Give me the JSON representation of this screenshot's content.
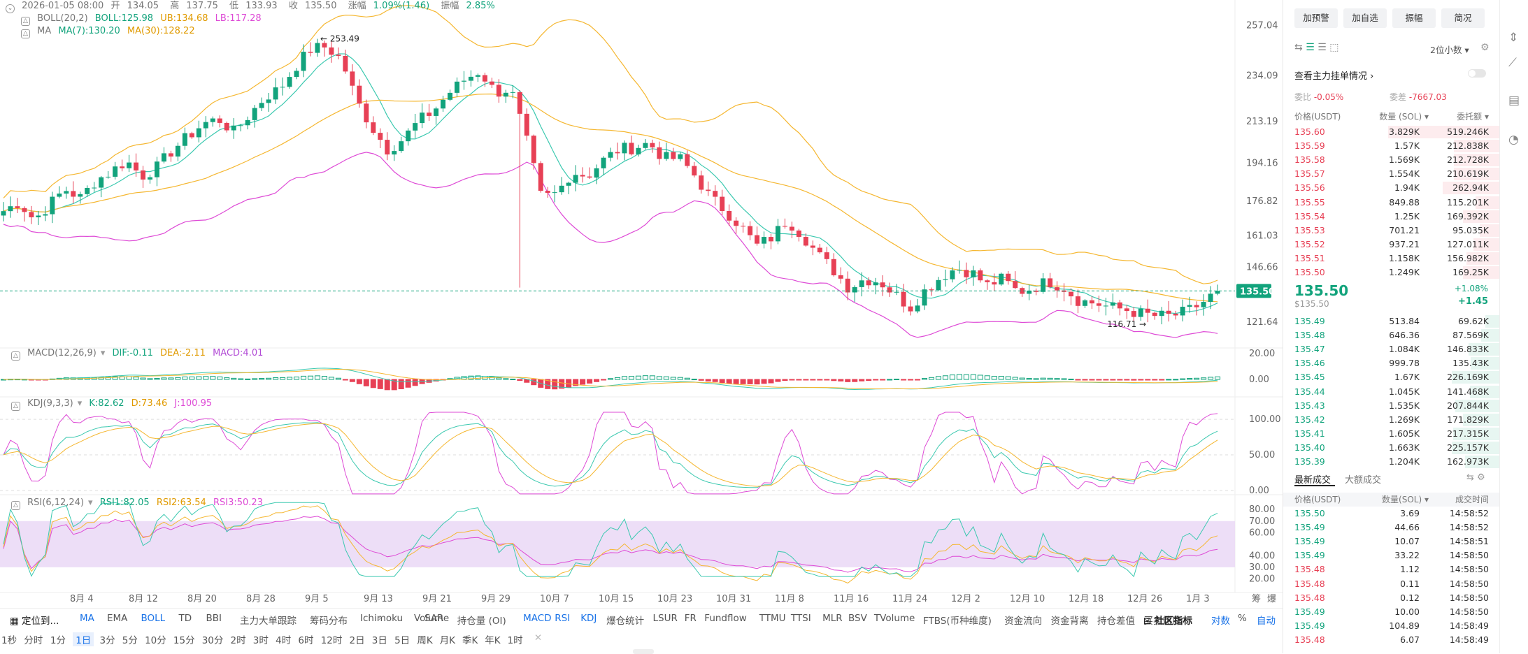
{
  "header": {
    "date": "2026-01-05 08:00",
    "open_label": "开",
    "open": "134.05",
    "high_label": "高",
    "high": "137.75",
    "low_label": "低",
    "low": "133.93",
    "close_label": "收",
    "close": "135.50",
    "chg_label": "涨幅",
    "chg": "1.09%(1.46)",
    "amp_label": "振幅",
    "amp": "2.85%"
  },
  "boll": {
    "label": "BOLL(20,2)",
    "mid": "BOLL:125.98",
    "ub": "UB:134.68",
    "lb": "LB:117.28"
  },
  "ma": {
    "label": "MA",
    "ma7": "MA(7):130.20",
    "ma30": "MA(30):128.22"
  },
  "macd": {
    "label": "MACD(12,26,9)",
    "dif": "DIF:-0.11",
    "dea": "DEA:-2.11",
    "macd": "MACD:4.01"
  },
  "kdj": {
    "label": "KDJ(9,3,3)",
    "k": "K:82.62",
    "d": "D:73.46",
    "j": "J:100.95"
  },
  "rsi": {
    "label": "RSI(6,12,24)",
    "r1": "RSI1:82.05",
    "r2": "RSI2:63.54",
    "r3": "RSI3:50.23"
  },
  "colors": {
    "up": "#12a37c",
    "down": "#e74055",
    "boll_band": "#f5b731",
    "boll_lb": "#de4bd6",
    "ma7": "#3cc9b0",
    "ma30": "#f5b731"
  },
  "chart_data": {
    "type": "candlestick",
    "price_axis": {
      "ticks": [
        "257.04",
        "234.09",
        "213.19",
        "194.16",
        "176.82",
        "161.03",
        "146.66",
        "121.64"
      ],
      "last": "135.50",
      "ylim": [
        112,
        262
      ]
    },
    "date_axis": [
      "8月 4",
      "8月 12",
      "8月 20",
      "8月 28",
      "9月 5",
      "9月 13",
      "9月 21",
      "9月 29",
      "10月 7",
      "10月 15",
      "10月 23",
      "10月 31",
      "11月 8",
      "11月 16",
      "11月 24",
      "12月 2",
      "12月 10",
      "12月 18",
      "12月 26",
      "1月 3"
    ],
    "annotations": {
      "high": "253.49",
      "low": "116.71"
    },
    "ohlc_weekly_close": [
      172,
      176,
      168,
      175,
      182,
      178,
      186,
      190,
      195,
      188,
      192,
      200,
      206,
      212,
      214,
      208,
      216,
      224,
      228,
      238,
      246,
      247,
      241,
      222,
      210,
      200,
      205,
      213,
      218,
      226,
      232,
      236,
      226,
      228,
      205,
      178,
      180,
      190,
      188,
      195,
      200,
      201,
      203,
      196,
      196,
      188,
      178,
      172,
      165,
      156,
      160,
      168,
      161,
      152,
      145,
      137,
      141,
      140,
      134,
      128,
      136,
      142,
      146,
      144,
      138,
      141,
      135,
      137,
      140,
      137,
      131,
      130,
      128,
      127,
      125,
      124,
      124,
      126,
      130,
      135.5
    ],
    "macd_axis": [
      "20.00",
      "0.00"
    ],
    "kdj_axis": [
      "100.00",
      "50.00",
      "0.00"
    ],
    "rsi_axis": [
      "80.00",
      "70.00",
      "60.00",
      "40.00",
      "30.00",
      "20.00"
    ]
  },
  "axis_corner": {
    "a": "筹",
    "b": "爆"
  },
  "orderbook": {
    "buttons": [
      "加预警",
      "加自选",
      "振幅",
      "简况"
    ],
    "precision": "2位小数",
    "main_link": "查看主力挂单情况",
    "ratio_label": "委比",
    "ratio": "-0.05%",
    "diff_label": "委差",
    "diff": "-7667.03",
    "col_price": "价格(USDT)",
    "col_qty": "数量 (SOL)",
    "col_total": "委托额",
    "asks": [
      [
        "135.60",
        "3.829K",
        "519.246K"
      ],
      [
        "135.59",
        "1.57K",
        "212.838K"
      ],
      [
        "135.58",
        "1.569K",
        "212.728K"
      ],
      [
        "135.57",
        "1.554K",
        "210.619K"
      ],
      [
        "135.56",
        "1.94K",
        "262.94K"
      ],
      [
        "135.55",
        "849.88",
        "115.201K"
      ],
      [
        "135.54",
        "1.25K",
        "169.392K"
      ],
      [
        "135.53",
        "701.21",
        "95.035K"
      ],
      [
        "135.52",
        "937.21",
        "127.011K"
      ],
      [
        "135.51",
        "1.158K",
        "156.982K"
      ],
      [
        "135.50",
        "1.249K",
        "169.25K"
      ]
    ],
    "ask_depth": [
      1.0,
      0.41,
      0.41,
      0.41,
      0.51,
      0.22,
      0.33,
      0.18,
      0.24,
      0.3,
      0.33
    ],
    "mid_price": "135.50",
    "mid_usd": "$135.50",
    "mid_pct": "+1.08%",
    "mid_chg": "+1.45",
    "bids": [
      [
        "135.49",
        "513.84",
        "69.62K"
      ],
      [
        "135.48",
        "646.36",
        "87.569K"
      ],
      [
        "135.47",
        "1.084K",
        "146.833K"
      ],
      [
        "135.46",
        "999.78",
        "135.43K"
      ],
      [
        "135.45",
        "1.67K",
        "226.169K"
      ],
      [
        "135.44",
        "1.045K",
        "141.468K"
      ],
      [
        "135.43",
        "1.535K",
        "207.844K"
      ],
      [
        "135.42",
        "1.269K",
        "171.829K"
      ],
      [
        "135.41",
        "1.605K",
        "217.315K"
      ],
      [
        "135.40",
        "1.663K",
        "225.157K"
      ],
      [
        "135.39",
        "1.204K",
        "162.973K"
      ]
    ],
    "bid_depth": [
      0.13,
      0.17,
      0.28,
      0.26,
      0.43,
      0.27,
      0.4,
      0.33,
      0.42,
      0.43,
      0.31
    ]
  },
  "trades": {
    "tab1": "最新成交",
    "tab2": "大额成交",
    "col_price": "价格(USDT)",
    "col_qty": "数量(SOL)",
    "col_time": "成交时间",
    "rows": [
      [
        "135.50",
        "3.69",
        "14:58:52",
        "g"
      ],
      [
        "135.49",
        "44.66",
        "14:58:52",
        "g"
      ],
      [
        "135.49",
        "10.07",
        "14:58:51",
        "g"
      ],
      [
        "135.49",
        "33.22",
        "14:58:50",
        "g"
      ],
      [
        "135.48",
        "1.12",
        "14:58:50",
        "r"
      ],
      [
        "135.48",
        "0.11",
        "14:58:50",
        "r"
      ],
      [
        "135.48",
        "0.12",
        "14:58:50",
        "r"
      ],
      [
        "135.49",
        "10.00",
        "14:58:50",
        "g"
      ],
      [
        "135.49",
        "104.89",
        "14:58:49",
        "g"
      ],
      [
        "135.48",
        "6.07",
        "14:58:49",
        "r"
      ]
    ]
  },
  "indicators": [
    "MA",
    "EMA",
    "BOLL",
    "TD",
    "BBI",
    "主力大单跟踪",
    "筹码分布",
    "Ichimoku",
    "SAR"
  ],
  "sub_indicators": [
    "Volume",
    "持仓量 (OI)",
    "MACD",
    "RSI",
    "KDJ",
    "爆仓统计",
    "LSUR",
    "FR",
    "Fundflow",
    "TTMU",
    "TTSI",
    "MLR",
    "BSV",
    "TVolume",
    "FTBS(币种维度)",
    "资金流向",
    "资金背离",
    "持仓差值",
    "买卖热度"
  ],
  "locate": "定位到...",
  "community": "社区指标",
  "right_tools": [
    "对数",
    "%",
    "自动"
  ],
  "intervals": [
    "1秒",
    "分时",
    "1分",
    "1日",
    "3分",
    "5分",
    "10分",
    "15分",
    "30分",
    "2时",
    "3时",
    "4时",
    "6时",
    "12时",
    "2日",
    "3日",
    "5日",
    "周K",
    "月K",
    "季K",
    "年K",
    "1时"
  ]
}
